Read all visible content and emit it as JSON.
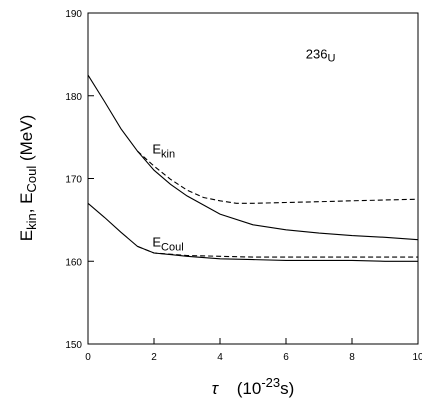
{
  "chart_data": {
    "type": "line",
    "title": "",
    "annotations": [
      {
        "base": "236",
        "sub": "U",
        "style": "sup-base",
        "x": 6.6,
        "y": 184.5
      },
      {
        "base": "E",
        "sub": "kin",
        "style": "sub",
        "x": 1.95,
        "y": 173.0
      },
      {
        "base": "E",
        "sub": "Coul",
        "style": "sub",
        "x": 1.95,
        "y": 161.8
      }
    ],
    "xlabel": {
      "symbol": "τ",
      "open": "(10",
      "exp": "-23",
      "unit": "s)"
    },
    "ylabel": {
      "main1": "E",
      "sub1": "kin",
      "sep": ", E",
      "sub2": "Coul",
      "unit": " (MeV)"
    },
    "xlim": [
      0,
      10
    ],
    "ylim": [
      150,
      190
    ],
    "xticks": [
      0,
      2,
      4,
      6,
      8,
      10
    ],
    "yticks": [
      150,
      160,
      170,
      180,
      190
    ],
    "grid": false,
    "series": [
      {
        "style": "solid",
        "x": [
          0,
          0.5,
          1,
          1.5,
          2,
          2.5,
          3,
          4,
          5,
          6,
          7,
          8,
          9,
          10
        ],
        "y": [
          182.5,
          179.3,
          176.0,
          173.3,
          171.0,
          169.3,
          167.9,
          165.7,
          164.4,
          163.8,
          163.4,
          163.1,
          162.9,
          162.6
        ]
      },
      {
        "style": "dashed",
        "x": [
          1.5,
          2,
          2.5,
          3,
          3.5,
          4,
          4.5,
          5,
          6,
          7,
          8,
          9,
          10
        ],
        "y": [
          173.3,
          171.5,
          169.9,
          168.6,
          167.7,
          167.3,
          167.0,
          167.0,
          167.1,
          167.2,
          167.3,
          167.4,
          167.5
        ]
      },
      {
        "style": "solid",
        "x": [
          0,
          0.5,
          1,
          1.5,
          2,
          2.5,
          3,
          4,
          5,
          6,
          7,
          8,
          9,
          10
        ],
        "y": [
          167.0,
          165.3,
          163.5,
          161.8,
          161.0,
          160.8,
          160.6,
          160.3,
          160.2,
          160.1,
          160.1,
          160.1,
          160.0,
          160.0
        ]
      },
      {
        "style": "dashed",
        "x": [
          1.5,
          2,
          3,
          4,
          5,
          6,
          7,
          8,
          9,
          10
        ],
        "y": [
          161.8,
          161.0,
          160.7,
          160.6,
          160.5,
          160.5,
          160.5,
          160.5,
          160.5,
          160.5
        ]
      }
    ]
  }
}
